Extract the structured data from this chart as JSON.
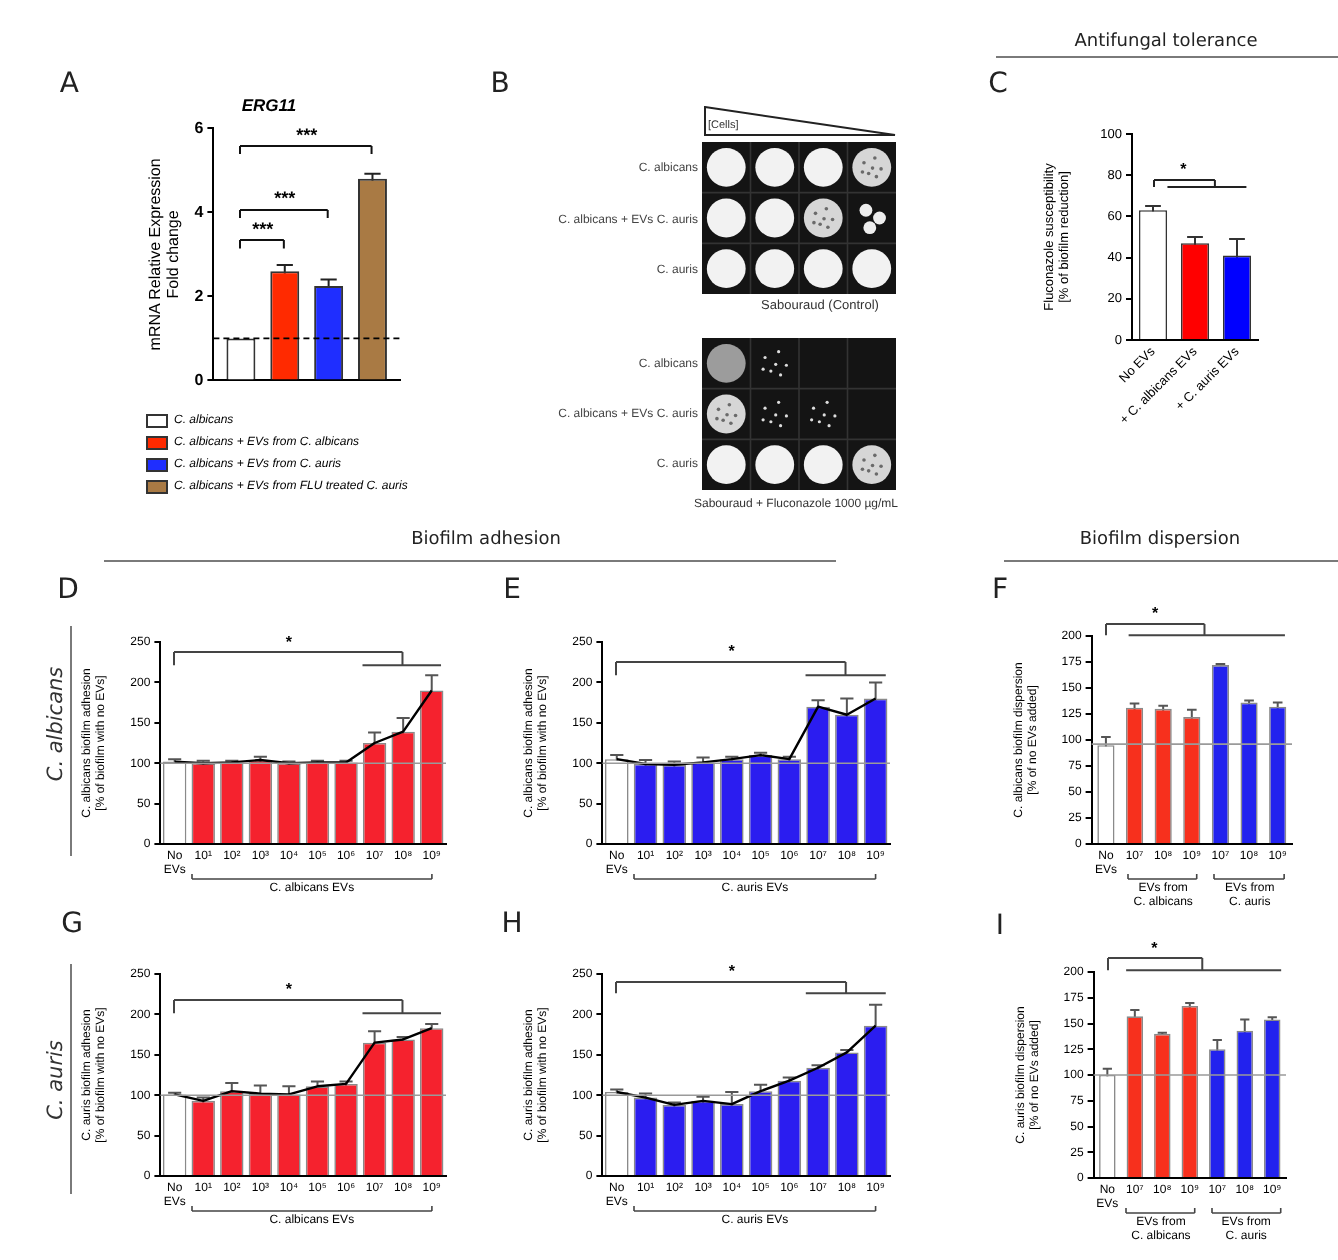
{
  "chart_data": [
    {
      "type": "bar",
      "title": "ERG11",
      "ylabel": "mRNA Relative Expression\nFold change",
      "categories": [
        null
      ],
      "series": [
        {
          "name": "C. albicans",
          "color": "#ffffff",
          "values": [
            1
          ]
        },
        {
          "name": "C. albicans + EVs from C. albicans",
          "color": "#ff2a00",
          "values": [
            2.6
          ],
          "errors": [
            0.15
          ]
        },
        {
          "name": "C. albicans + EVs from C. auris",
          "color": "#1f2eff",
          "values": [
            2.25
          ],
          "errors": [
            0.15
          ]
        },
        {
          "name": "C. albicans + EVs from FLU treated C. auris",
          "color": "#a97a44",
          "values": [
            4.8
          ],
          "errors": [
            0.12
          ]
        }
      ],
      "ylim": [
        0,
        6
      ],
      "yticks": [
        0,
        2,
        4,
        6
      ],
      "ref_lines": [
        {
          "axis": "y",
          "value": 1,
          "line_style": "dashed",
          "color": "#000000"
        }
      ],
      "legend": "bottom",
      "tick_labels": "y",
      "grid": false,
      "annotations": [
        "A",
        "***",
        "***",
        "***"
      ]
    },
    {
      "type": "other",
      "annotations": [
        "B",
        "[Cells]",
        "C. albicans",
        "C. albicans + EVs C. auris",
        "C. auris",
        "Sabouraud (Control)",
        "C. albicans",
        "C. albicans + EVs C. auris",
        "C. auris",
        "Sabouraud + Fluconazole 1000 µg/mL"
      ]
    },
    {
      "type": "bar",
      "ylabel": "Fluconazole susceptibility\n[% of biofilm reduction]",
      "categories": [
        "No EVs",
        "+ C. albicans EVs",
        "+ C. auris EVs"
      ],
      "values": [
        63,
        47,
        41
      ],
      "errors": [
        2,
        3,
        8
      ],
      "colors": [
        "#ffffff",
        "#ff0000",
        "#0000ff"
      ],
      "ylim": [
        0,
        100
      ],
      "yticks": [
        0,
        20,
        40,
        60,
        80,
        100
      ],
      "grid": false,
      "annotations": [
        "C",
        "Antifungal tolerance",
        "*"
      ]
    },
    {
      "type": "bar",
      "ylabel": "C. albicans biofilm adhesion\n[% of biofilm with no EVs]",
      "xlabel": "C. albicans EVs",
      "categories": [
        "No EVs",
        "10¹",
        "10²",
        "10³",
        "10⁴",
        "10⁵",
        "10⁶",
        "10⁷",
        "10⁸",
        "10⁹"
      ],
      "series": [
        {
          "values": [
            102,
            100,
            101,
            104,
            100,
            101,
            101,
            125,
            139,
            190
          ],
          "errors": [
            3,
            3,
            2,
            4,
            2,
            2,
            2,
            13,
            17,
            19
          ],
          "colors": [
            "#ffffff",
            "#f5222e",
            "#f5222e",
            "#f5222e",
            "#f5222e",
            "#f5222e",
            "#f5222e",
            "#f5222e",
            "#f5222e",
            "#f5222e"
          ]
        },
        {
          "type": "line",
          "color": "#000000",
          "values": [
            102,
            100,
            101,
            104,
            100,
            101,
            101,
            125,
            139,
            190
          ]
        }
      ],
      "ylim": [
        0,
        250
      ],
      "yticks": [
        0,
        50,
        100,
        150,
        200,
        250
      ],
      "ref_lines": [
        {
          "axis": "y",
          "value": 100,
          "color": "#9a9a9a"
        }
      ],
      "grid": false,
      "annotations": [
        "D",
        "Biofilm adhesion",
        "C. albicans",
        "*"
      ]
    },
    {
      "type": "bar",
      "ylabel": "C. albicans biofilm adhesion\n[% of biofilm with no EVs]",
      "xlabel": "C. auris EVs",
      "categories": [
        "No EVs",
        "10¹",
        "10²",
        "10³",
        "10⁴",
        "10⁵",
        "10⁶",
        "10⁷",
        "10⁸",
        "10⁹"
      ],
      "series": [
        {
          "values": [
            105,
            99,
            98,
            101,
            105,
            110,
            105,
            170,
            160,
            180
          ],
          "errors": [
            5,
            5,
            4,
            6,
            3,
            3,
            3,
            8,
            20,
            20
          ],
          "colors": [
            "#ffffff",
            "#2b1df0",
            "#2b1df0",
            "#2b1df0",
            "#2b1df0",
            "#2b1df0",
            "#2b1df0",
            "#2b1df0",
            "#2b1df0",
            "#2b1df0"
          ]
        },
        {
          "type": "line",
          "color": "#000000",
          "values": [
            105,
            99,
            98,
            101,
            105,
            110,
            105,
            170,
            160,
            180
          ]
        }
      ],
      "ylim": [
        0,
        250
      ],
      "yticks": [
        0,
        50,
        100,
        150,
        200,
        250
      ],
      "ref_lines": [
        {
          "axis": "y",
          "value": 100,
          "color": "#9a9a9a"
        }
      ],
      "grid": false,
      "annotations": [
        "E",
        "*"
      ]
    },
    {
      "type": "bar",
      "ylabel": "C. albicans biofilm dispersion\n[% of no EVs added]",
      "categories": [
        "No EVs",
        "10⁷",
        "10⁸",
        "10⁹",
        "10⁷",
        "10⁸",
        "10⁹"
      ],
      "values": [
        95,
        131,
        130,
        122,
        172,
        136,
        132
      ],
      "errors": [
        8,
        4,
        3,
        7,
        1,
        2,
        4
      ],
      "colors": [
        "#ffffff",
        "#f7301d",
        "#f7301d",
        "#f7301d",
        "#2222ee",
        "#2222ee",
        "#2222ee"
      ],
      "ylim": [
        0,
        200
      ],
      "yticks": [
        0,
        25,
        50,
        75,
        100,
        125,
        150,
        175,
        200
      ],
      "ref_lines": [
        {
          "axis": "y",
          "value": 96,
          "color": "#9a9a9a"
        }
      ],
      "grid": false,
      "annotations": [
        "F",
        "Biofilm dispersion",
        "*",
        "EVs from\nC. albicans",
        "EVs from\nC. auris"
      ]
    },
    {
      "type": "bar",
      "ylabel": "C. auris biofilm adhesion\n[% of biofilm with no EVs]",
      "xlabel": "C. albicans EVs",
      "categories": [
        "No EVs",
        "10¹",
        "10²",
        "10³",
        "10⁴",
        "10⁵",
        "10⁶",
        "10⁷",
        "10⁸",
        "10⁹"
      ],
      "series": [
        {
          "values": [
            101,
            93,
            105,
            102,
            101,
            111,
            114,
            165,
            169,
            183
          ],
          "errors": [
            2,
            4,
            10,
            10,
            10,
            6,
            3,
            14,
            3,
            5
          ],
          "colors": [
            "#ffffff",
            "#f5222e",
            "#f5222e",
            "#f5222e",
            "#f5222e",
            "#f5222e",
            "#f5222e",
            "#f5222e",
            "#f5222e",
            "#f5222e"
          ]
        },
        {
          "type": "line",
          "color": "#000000",
          "values": [
            101,
            93,
            105,
            102,
            101,
            111,
            114,
            165,
            169,
            183
          ]
        }
      ],
      "ylim": [
        0,
        250
      ],
      "yticks": [
        0,
        50,
        100,
        150,
        200,
        250
      ],
      "ref_lines": [
        {
          "axis": "y",
          "value": 100,
          "color": "#9a9a9a"
        }
      ],
      "grid": false,
      "annotations": [
        "G",
        "C. auris",
        "*"
      ]
    },
    {
      "type": "bar",
      "ylabel": "C. auris biofilm adhesion\n[% of biofilm with no EVs]",
      "xlabel": "C. auris EVs",
      "categories": [
        "No EVs",
        "10¹",
        "10²",
        "10³",
        "10⁴",
        "10⁵",
        "10⁶",
        "10⁷",
        "10⁸",
        "10⁹"
      ],
      "series": [
        {
          "values": [
            104,
            97,
            88,
            93,
            89,
            105,
            118,
            134,
            153,
            186
          ],
          "errors": [
            3,
            5,
            3,
            5,
            15,
            8,
            4,
            3,
            3,
            26
          ],
          "colors": [
            "#ffffff",
            "#2b1df0",
            "#2b1df0",
            "#2b1df0",
            "#2b1df0",
            "#2b1df0",
            "#2b1df0",
            "#2b1df0",
            "#2b1df0",
            "#2b1df0"
          ]
        },
        {
          "type": "line",
          "color": "#000000",
          "values": [
            104,
            97,
            88,
            93,
            89,
            105,
            118,
            134,
            153,
            186
          ]
        }
      ],
      "ylim": [
        0,
        250
      ],
      "yticks": [
        0,
        50,
        100,
        150,
        200,
        250
      ],
      "ref_lines": [
        {
          "axis": "y",
          "value": 100,
          "color": "#9a9a9a"
        }
      ],
      "grid": false,
      "annotations": [
        "H",
        "*"
      ]
    },
    {
      "type": "bar",
      "ylabel": "C. auris biofilm dispersion\n[% of no EVs added]",
      "categories": [
        "No EVs",
        "10⁷",
        "10⁸",
        "10⁹",
        "10⁷",
        "10⁸",
        "10⁹"
      ],
      "values": [
        100,
        157,
        140,
        167,
        125,
        143,
        154
      ],
      "errors": [
        6,
        6,
        1,
        3,
        9,
        11,
        2
      ],
      "colors": [
        "#ffffff",
        "#f7301d",
        "#f7301d",
        "#f7301d",
        "#2222ee",
        "#2222ee",
        "#2222ee"
      ],
      "ylim": [
        0,
        200
      ],
      "yticks": [
        0,
        25,
        50,
        75,
        100,
        125,
        150,
        175,
        200
      ],
      "ref_lines": [
        {
          "axis": "y",
          "value": 100,
          "color": "#9a9a9a"
        }
      ],
      "grid": false,
      "annotations": [
        "I",
        "*",
        "EVs from\nC. albicans",
        "EVs from\nC. auris"
      ]
    }
  ]
}
